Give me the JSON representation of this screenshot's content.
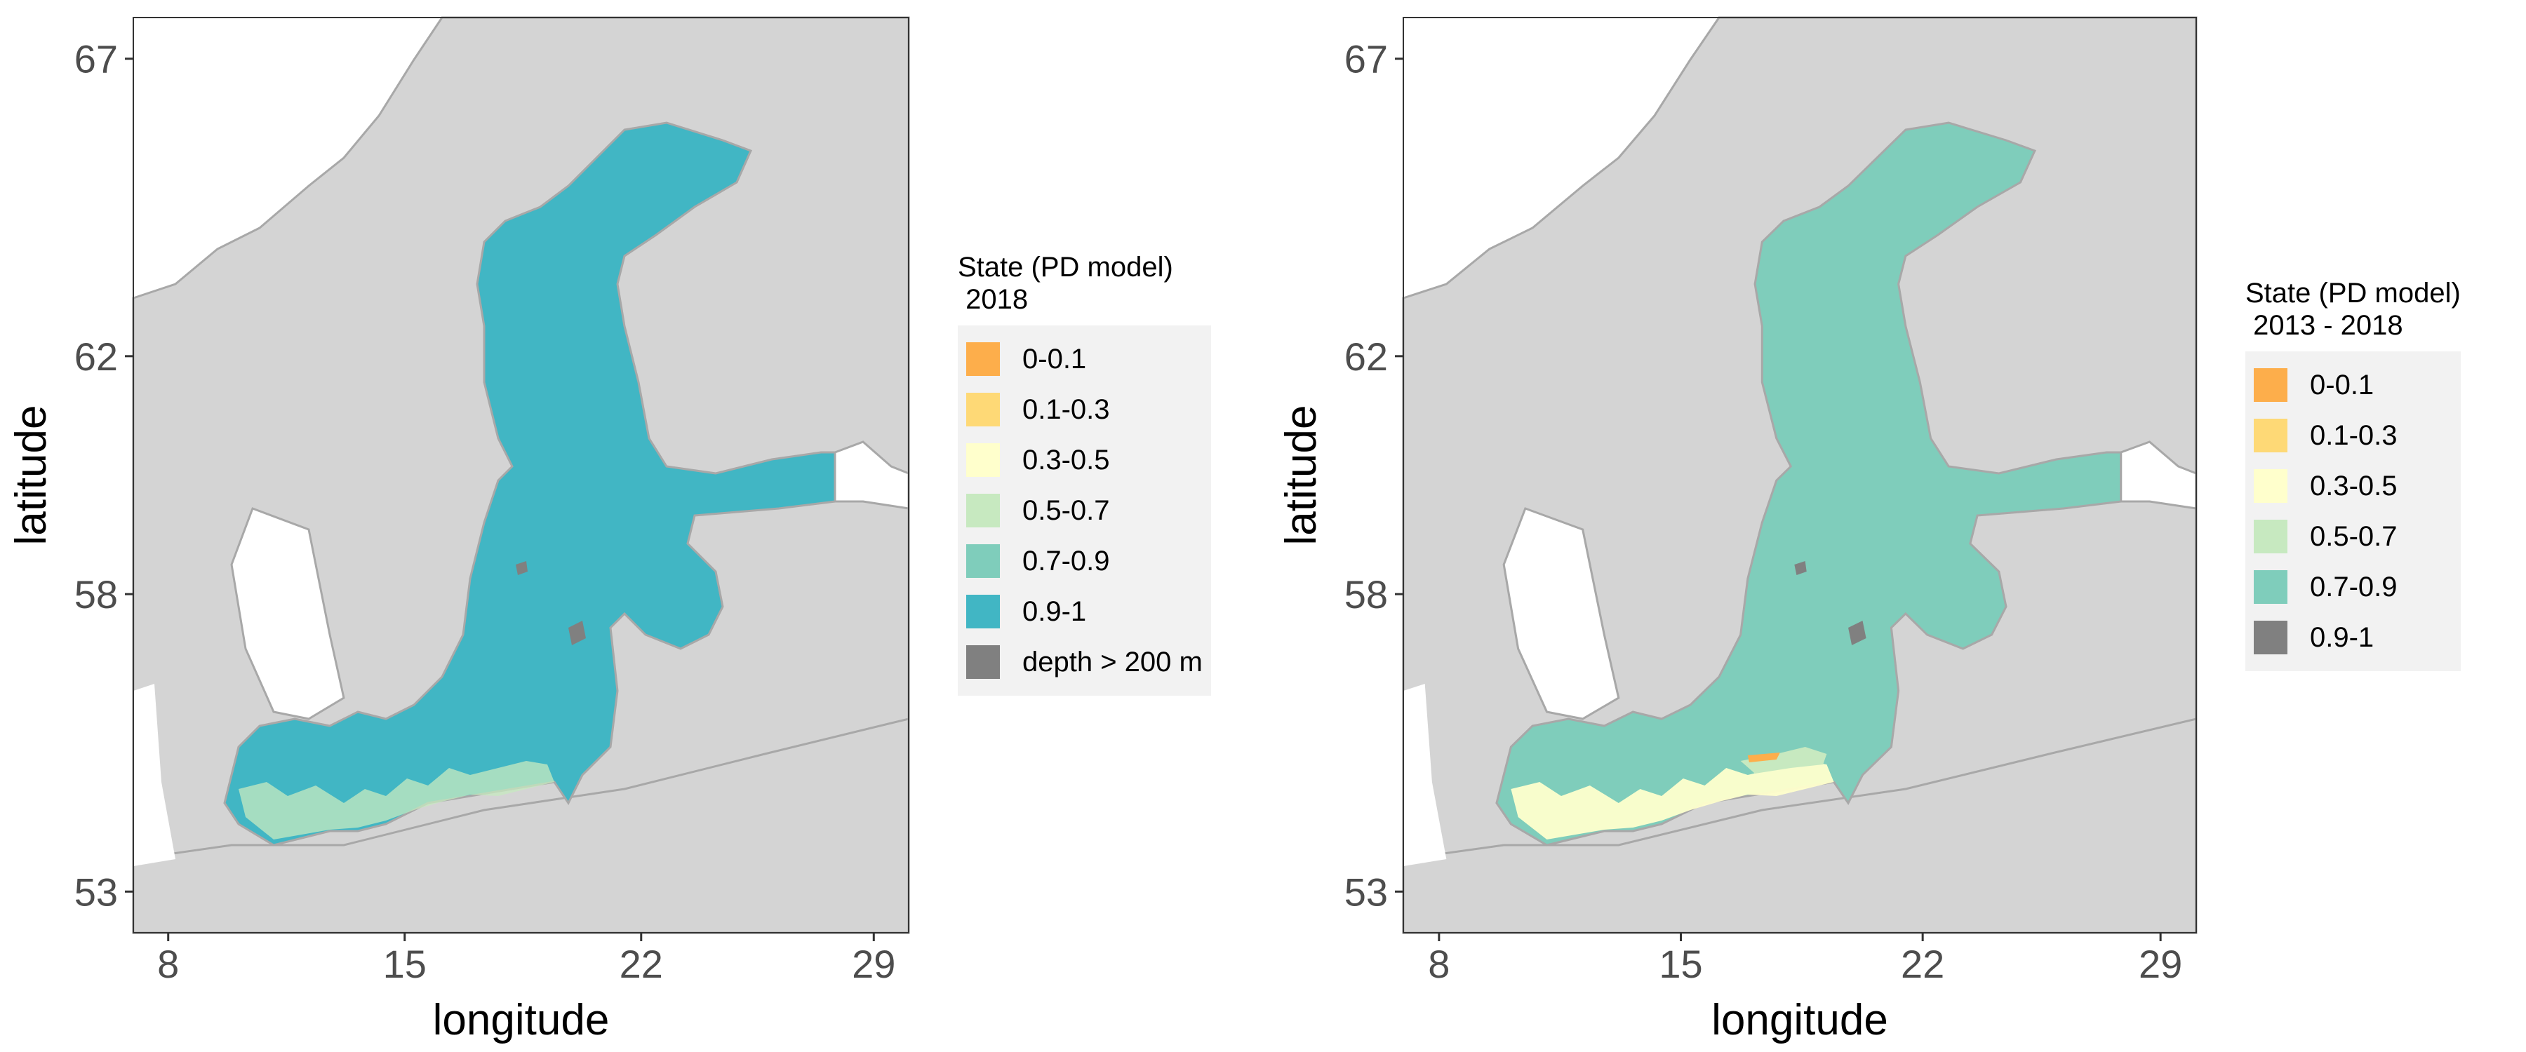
{
  "panels": [
    {
      "name": "left",
      "xlabel": "longitude",
      "ylabel": "latitude",
      "x_ticks": [
        "8",
        "15",
        "22",
        "29"
      ],
      "y_ticks": [
        "53",
        "58",
        "62",
        "67"
      ],
      "fill_color": "#41b6c4",
      "legend": {
        "title": "State (PD model)\n 2018",
        "items": [
          {
            "label": "0-0.1",
            "color": "#fdae4b"
          },
          {
            "label": "0.1-0.3",
            "color": "#fed976"
          },
          {
            "label": "0.3-0.5",
            "color": "#ffffcc"
          },
          {
            "label": "0.5-0.7",
            "color": "#c7e9c0"
          },
          {
            "label": "0.7-0.9",
            "color": "#7fcdbb"
          },
          {
            "label": "0.9-1",
            "color": "#41b6c4"
          },
          {
            "label": "depth > 200 m",
            "color": "#808080"
          }
        ]
      }
    },
    {
      "name": "right",
      "xlabel": "longitude",
      "ylabel": "latitude",
      "x_ticks": [
        "8",
        "15",
        "22",
        "29"
      ],
      "y_ticks": [
        "53",
        "58",
        "62",
        "67"
      ],
      "fill_color": "#7fcdbb",
      "legend": {
        "title": "State (PD model)\n 2013 - 2018",
        "items": [
          {
            "label": "0-0.1",
            "color": "#fdae4b"
          },
          {
            "label": "0.1-0.3",
            "color": "#fed976"
          },
          {
            "label": "0.3-0.5",
            "color": "#ffffcc"
          },
          {
            "label": "0.5-0.7",
            "color": "#c7e9c0"
          },
          {
            "label": "0.7-0.9",
            "color": "#7fcdbb"
          },
          {
            "label": "0.9-1",
            "color": "#808080"
          }
        ]
      }
    }
  ],
  "colors": {
    "land": "#d4d4d4",
    "border": "#a8a8a8",
    "deep": "#808080"
  }
}
